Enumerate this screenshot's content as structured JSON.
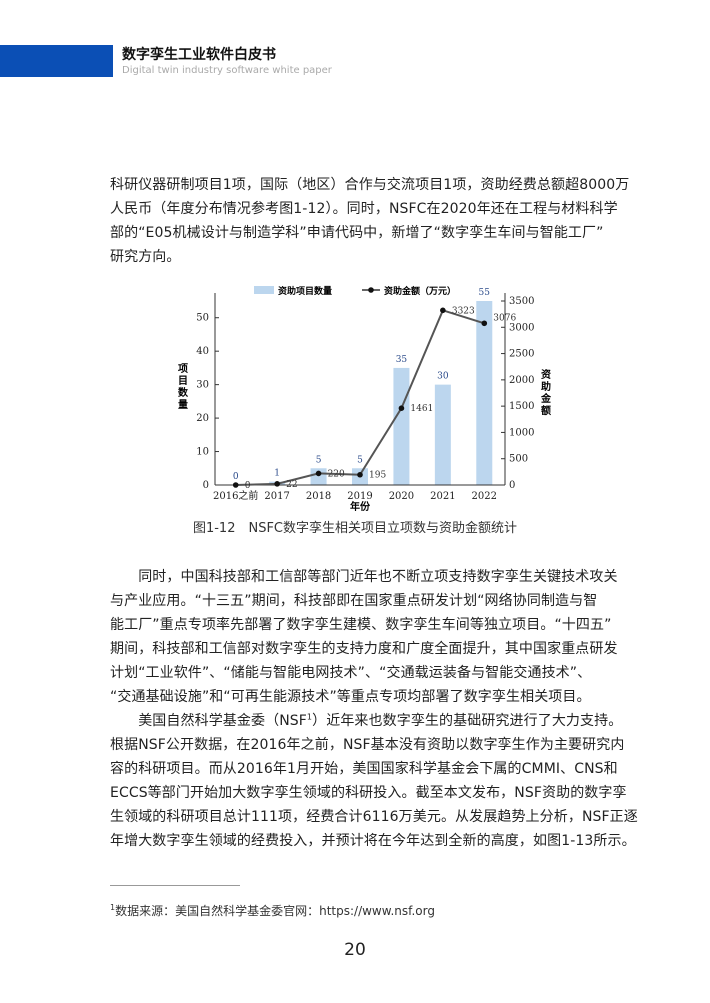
{
  "header": {
    "title": "数字孪生工业软件白皮书",
    "subtitle": "Digital twin industry software white paper",
    "accent": "#0b4fb5"
  },
  "para1": [
    "科研仪器研制项目1项，国际（地区）合作与交流项目1项，资助经费总额超8000万",
    "人民币（年度分布情况参考图1-12）。同时，NSFC在2020年还在工程与材料科学",
    "部的“E05机械设计与制造学科”申请代码中，新增了“数字孪生车间与智能工厂”",
    "研究方向。"
  ],
  "chart_data": {
    "type": "bar+line",
    "categories": [
      "2016之前",
      "2017",
      "2018",
      "2019",
      "2020",
      "2021",
      "2022"
    ],
    "series": [
      {
        "name": "资助项目数量",
        "type": "bar",
        "axis": "left",
        "values": [
          0,
          1,
          5,
          5,
          35,
          30,
          55
        ],
        "color": "#bcd6ee"
      },
      {
        "name": "资助金额（万元）",
        "type": "line",
        "axis": "right",
        "values": [
          0,
          22,
          220,
          195,
          1461,
          3323,
          3076
        ],
        "color": "#555555"
      }
    ],
    "xlabel": "年份",
    "ylabel": "项目数量",
    "ylabel_right": "资助金额",
    "ylim": [
      0,
      55
    ],
    "yticks": [
      0,
      10,
      20,
      30,
      40,
      50
    ],
    "ylim_right": [
      0,
      3500
    ],
    "yticks_right": [
      0,
      500,
      1000,
      1500,
      2000,
      2500,
      3000,
      3500
    ],
    "legend": "top",
    "grid": false
  },
  "caption": "图1-12　NSFC数字孪生相关项目立项数与资助金额统计",
  "para2": [
    "　　同时，中国科技部和工信部等部门近年也不断立项支持数字孪生关键技术攻关",
    "与产业应用。“十三五”期间，科技部即在国家重点研发计划“网络协同制造与智",
    "能工厂”重点专项率先部署了数字孪生建模、数字孪生车间等独立项目。“十四五”",
    "期间，科技部和工信部对数字孪生的支持力度和广度全面提升，其中国家重点研发",
    "计划“工业软件”、“储能与智能电网技术”、“交通载运装备与智能交通技术”、",
    "“交通基础设施”和“可再生能源技术”等重点专项均部署了数字孪生相关项目。"
  ],
  "para3_first": {
    "before": "　　美国自然科学基金委（NSF",
    "sup": "1",
    "after": "）近年来也数字孪生的基础研究进行了大力支持。"
  },
  "para3": [
    "根据NSF公开数据，在2016年之前，NSF基本没有资助以数字孪生作为主要研究内",
    "容的科研项目。而从2016年1月开始，美国国家科学基金会下属的CMMI、CNS和",
    "ECCS等部门开始加大数字孪生领域的科研投入。截至本文发布，NSF资助的数字孪",
    "生领域的科研项目总计111项，经费合计6116万美元。从发展趋势上分析，NSF正逐",
    "年增大数字孪生领域的经费投入，并预计将在今年达到全新的高度，如图1-13所示。"
  ],
  "footnote": {
    "mark": "1",
    "text": "数据来源：美国自然科学基金委官网：https://www.nsf.org"
  },
  "page_number": "20"
}
